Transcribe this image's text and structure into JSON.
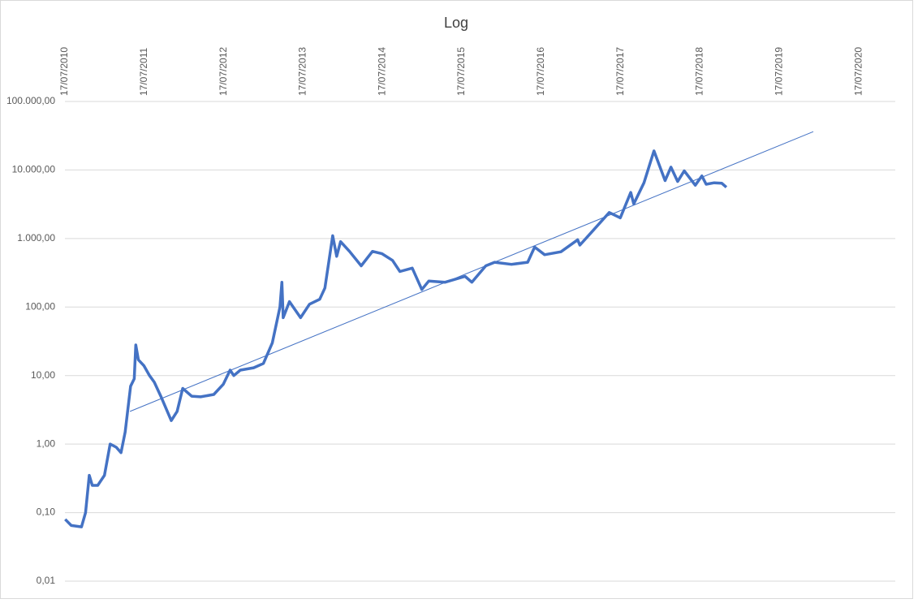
{
  "chart_data": {
    "type": "line",
    "title": "Log",
    "log_scale_y": true,
    "grid": true,
    "xlim": [
      "2010-07-17",
      "2020-12-31"
    ],
    "xticks": [
      {
        "value": "2010-07-17",
        "label": "17/07/2010"
      },
      {
        "value": "2011-07-17",
        "label": "17/07/2011"
      },
      {
        "value": "2012-07-17",
        "label": "17/07/2012"
      },
      {
        "value": "2013-07-17",
        "label": "17/07/2013"
      },
      {
        "value": "2014-07-17",
        "label": "17/07/2014"
      },
      {
        "value": "2015-07-17",
        "label": "17/07/2015"
      },
      {
        "value": "2016-07-17",
        "label": "17/07/2016"
      },
      {
        "value": "2017-07-17",
        "label": "17/07/2017"
      },
      {
        "value": "2018-07-17",
        "label": "17/07/2018"
      },
      {
        "value": "2019-07-17",
        "label": "17/07/2019"
      },
      {
        "value": "2020-07-17",
        "label": "17/07/2020"
      }
    ],
    "ylim": [
      0.01,
      100000
    ],
    "yticks": [
      {
        "value": 0.01,
        "label": "0,01"
      },
      {
        "value": 0.1,
        "label": "0,10"
      },
      {
        "value": 1,
        "label": "1,00"
      },
      {
        "value": 10,
        "label": "10,00"
      },
      {
        "value": 100,
        "label": "100,00"
      },
      {
        "value": 1000,
        "label": "1.000,00"
      },
      {
        "value": 10000,
        "label": "10.000,00"
      },
      {
        "value": 100000,
        "label": "100.000,00"
      }
    ],
    "series": [
      {
        "color": "#4472c4",
        "line_width": 3.5,
        "x": [
          "2010-07-18",
          "2010-08-15",
          "2010-10-01",
          "2010-10-20",
          "2010-11-06",
          "2010-11-20",
          "2010-12-15",
          "2011-01-15",
          "2011-02-10",
          "2011-03-10",
          "2011-04-01",
          "2011-04-20",
          "2011-05-15",
          "2011-06-01",
          "2011-06-08",
          "2011-06-20",
          "2011-07-15",
          "2011-08-10",
          "2011-09-01",
          "2011-10-01",
          "2011-11-18",
          "2011-12-15",
          "2012-01-10",
          "2012-02-20",
          "2012-04-01",
          "2012-06-01",
          "2012-07-15",
          "2012-08-15",
          "2012-09-01",
          "2012-10-01",
          "2012-12-01",
          "2013-01-15",
          "2013-02-25",
          "2013-04-01",
          "2013-04-10",
          "2013-04-16",
          "2013-05-15",
          "2013-07-05",
          "2013-08-15",
          "2013-10-01",
          "2013-10-25",
          "2013-11-30",
          "2013-12-18",
          "2014-01-05",
          "2014-02-15",
          "2014-04-10",
          "2014-06-01",
          "2014-07-15",
          "2014-09-01",
          "2014-10-05",
          "2014-12-01",
          "2015-01-14",
          "2015-02-15",
          "2015-05-01",
          "2015-08-01",
          "2015-09-01",
          "2015-11-04",
          "2015-12-15",
          "2016-03-01",
          "2016-05-15",
          "2016-06-16",
          "2016-08-01",
          "2016-10-15",
          "2016-12-31",
          "2017-01-10",
          "2017-03-01",
          "2017-05-25",
          "2017-07-15",
          "2017-09-01",
          "2017-09-15",
          "2017-11-01",
          "2017-12-17",
          "2018-02-06",
          "2018-03-05",
          "2018-04-05",
          "2018-05-05",
          "2018-06-25",
          "2018-07-25",
          "2018-08-14",
          "2018-09-20",
          "2018-10-25",
          "2018-11-15"
        ],
        "values": [
          0.08,
          0.065,
          0.062,
          0.1,
          0.35,
          0.25,
          0.25,
          0.35,
          1.0,
          0.9,
          0.75,
          1.5,
          7,
          9,
          28,
          17,
          14,
          10,
          8,
          5,
          2.2,
          3.0,
          6.5,
          5.0,
          4.9,
          5.3,
          7.5,
          12,
          10,
          12,
          13,
          15,
          30,
          100,
          230,
          70,
          120,
          70,
          110,
          130,
          190,
          1100,
          550,
          900,
          650,
          400,
          650,
          600,
          480,
          330,
          370,
          180,
          240,
          230,
          280,
          230,
          400,
          450,
          420,
          450,
          750,
          580,
          640,
          960,
          800,
          1200,
          2400,
          2000,
          4700,
          3200,
          6500,
          19000,
          7000,
          11000,
          6800,
          9700,
          6000,
          8200,
          6200,
          6500,
          6400,
          5600
        ]
      },
      {
        "color": "#4472c4",
        "line_width": 1,
        "x": [
          "2011-05-12",
          "2019-12-20"
        ],
        "values": [
          3.0,
          36300
        ]
      }
    ]
  }
}
